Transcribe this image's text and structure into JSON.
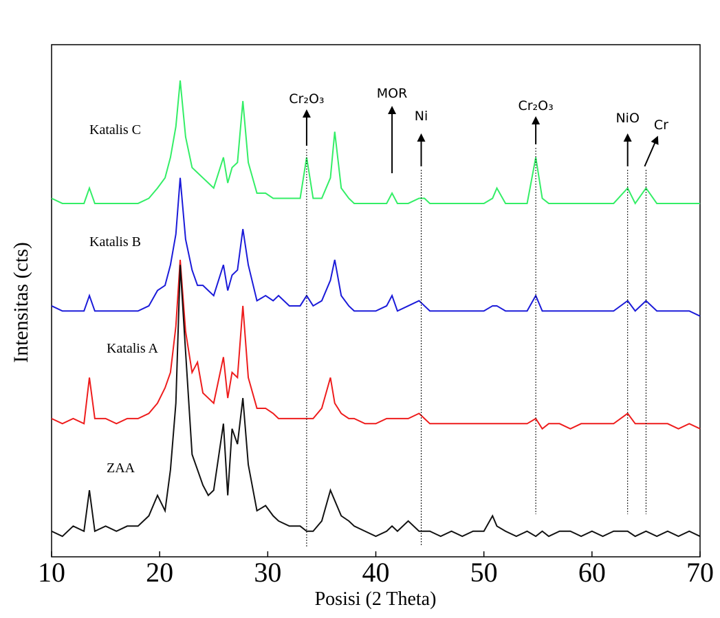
{
  "chart_data": {
    "type": "line",
    "xlabel": "Posisi (2 Theta)",
    "ylabel": "Intensitas (cts)",
    "xlim": [
      10,
      70
    ],
    "xticks": [
      10,
      20,
      30,
      40,
      50,
      60,
      70
    ],
    "ylim": [
      0,
      100
    ],
    "x": [
      10,
      11,
      12,
      13,
      13.5,
      14,
      15,
      16,
      17,
      18,
      19,
      19.8,
      20.5,
      21,
      21.5,
      21.9,
      22.4,
      23,
      23.5,
      24,
      24.5,
      25,
      25.9,
      26.3,
      26.7,
      27.2,
      27.7,
      28.2,
      29,
      29.8,
      30.5,
      31,
      32,
      33,
      33.6,
      34.2,
      35,
      35.8,
      36.2,
      36.8,
      37.5,
      38,
      39,
      40,
      41,
      41.5,
      42,
      43,
      44,
      44.5,
      45,
      46,
      47,
      48,
      49,
      50,
      50.8,
      51.2,
      52,
      53,
      54,
      54.8,
      55.4,
      56,
      57,
      58,
      59,
      60,
      61,
      62,
      63.3,
      64,
      65,
      66,
      67,
      68,
      69,
      70
    ],
    "series": [
      {
        "name": "Katalis C",
        "color": "#33ee66",
        "values": [
          70,
          69,
          69,
          69,
          72,
          69,
          69,
          69,
          69,
          69,
          70,
          72,
          74,
          78,
          84,
          93,
          82,
          76,
          75,
          74,
          73,
          72,
          78,
          73,
          76,
          77,
          89,
          77,
          71,
          71,
          70,
          70,
          70,
          70,
          78,
          70,
          70,
          74,
          83,
          72,
          70,
          69,
          69,
          69,
          69,
          71,
          69,
          69,
          70,
          70,
          69,
          69,
          69,
          69,
          69,
          69,
          70,
          72,
          69,
          69,
          69,
          78,
          70,
          69,
          69,
          69,
          69,
          69,
          69,
          69,
          72,
          69,
          72,
          69,
          69,
          69,
          69,
          69
        ]
      },
      {
        "name": "Katalis B",
        "color": "#1a1ad9",
        "values": [
          49,
          48,
          48,
          48,
          51,
          48,
          48,
          48,
          48,
          48,
          49,
          52,
          53,
          57,
          63,
          74,
          62,
          56,
          53,
          53,
          52,
          51,
          57,
          52,
          55,
          56,
          64,
          57,
          50,
          51,
          50,
          51,
          49,
          49,
          51,
          49,
          50,
          54,
          58,
          51,
          49,
          48,
          48,
          48,
          49,
          51,
          48,
          49,
          50,
          49,
          48,
          48,
          48,
          48,
          48,
          48,
          49,
          49,
          48,
          48,
          48,
          51,
          48,
          48,
          48,
          48,
          48,
          48,
          48,
          48,
          50,
          48,
          50,
          48,
          48,
          48,
          48,
          47
        ]
      },
      {
        "name": "Katalis A",
        "color": "#ee1c1c",
        "values": [
          27,
          26,
          27,
          26,
          35,
          27,
          27,
          26,
          27,
          27,
          28,
          30,
          33,
          36,
          45,
          58,
          44,
          36,
          38,
          32,
          31,
          30,
          39,
          31,
          36,
          35,
          49,
          35,
          29,
          29,
          28,
          27,
          27,
          27,
          27,
          27,
          29,
          35,
          30,
          28,
          27,
          27,
          26,
          26,
          27,
          27,
          27,
          27,
          28,
          27,
          26,
          26,
          26,
          26,
          26,
          26,
          26,
          26,
          26,
          26,
          26,
          27,
          25,
          26,
          26,
          25,
          26,
          26,
          26,
          26,
          28,
          26,
          26,
          26,
          26,
          25,
          26,
          25
        ]
      },
      {
        "name": "ZAA",
        "color": "#111111",
        "values": [
          5,
          4,
          6,
          5,
          13,
          5,
          6,
          5,
          6,
          6,
          8,
          12,
          9,
          17,
          30,
          57,
          40,
          20,
          17,
          14,
          12,
          13,
          26,
          12,
          25,
          22,
          31,
          18,
          9,
          10,
          8,
          7,
          6,
          6,
          5,
          5,
          7,
          13,
          11,
          8,
          7,
          6,
          5,
          4,
          5,
          6,
          5,
          7,
          5,
          5,
          5,
          4,
          5,
          4,
          5,
          5,
          8,
          6,
          5,
          4,
          5,
          4,
          5,
          4,
          5,
          5,
          4,
          5,
          4,
          5,
          5,
          4,
          5,
          4,
          5,
          4,
          5,
          4
        ]
      }
    ],
    "annotations": [
      {
        "text": "Cr₂O₃",
        "x": 33.6
      },
      {
        "text": "MOR",
        "x": 41.5
      },
      {
        "text": "Ni",
        "x": 44.2
      },
      {
        "text": "Cr₂O₃",
        "x": 54.8
      },
      {
        "text": "NiO",
        "x": 63.3
      },
      {
        "text": "Cr",
        "x": 65
      }
    ]
  }
}
